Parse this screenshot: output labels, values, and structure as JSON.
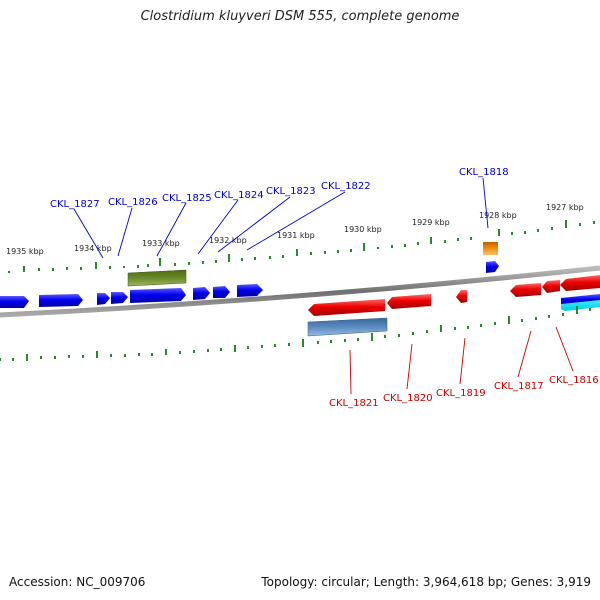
{
  "title": "Clostridium kluyveri DSM 555, complete genome",
  "footer": {
    "accession": "Accession: NC_009706",
    "topology": "Topology: circular; Length: 3,964,618 bp; Genes: 3,919"
  },
  "ticks": [
    {
      "label": "1935 kbp"
    },
    {
      "label": "1934 kbp"
    },
    {
      "label": "1933 kbp"
    },
    {
      "label": "1932 kbp"
    },
    {
      "label": "1931 kbp"
    },
    {
      "label": "1930 kbp"
    },
    {
      "label": "1929 kbp"
    },
    {
      "label": "1928 kbp"
    },
    {
      "label": "1927 kbp"
    }
  ],
  "forward_genes": [
    {
      "label": "CKL_1827"
    },
    {
      "label": "CKL_1826"
    },
    {
      "label": "CKL_1825"
    },
    {
      "label": "CKL_1824"
    },
    {
      "label": "CKL_1823"
    },
    {
      "label": "CKL_1822"
    },
    {
      "label": "CKL_1818"
    }
  ],
  "reverse_genes": [
    {
      "label": "CKL_1821"
    },
    {
      "label": "CKL_1820"
    },
    {
      "label": "CKL_1819"
    },
    {
      "label": "CKL_1817"
    },
    {
      "label": "CKL_1816"
    }
  ],
  "colors": {
    "forward_cds": "#0000ee",
    "reverse_cds": "#ee0000",
    "rna_green": "#5a7a1a",
    "rna_steelblue": "#4a7ab0",
    "orange": "#e08000",
    "cyan": "#20e0f0",
    "backbone": "#888888",
    "tick": "#2a8a2a",
    "label_forward": "#0000cc",
    "label_reverse": "#cc0000"
  }
}
